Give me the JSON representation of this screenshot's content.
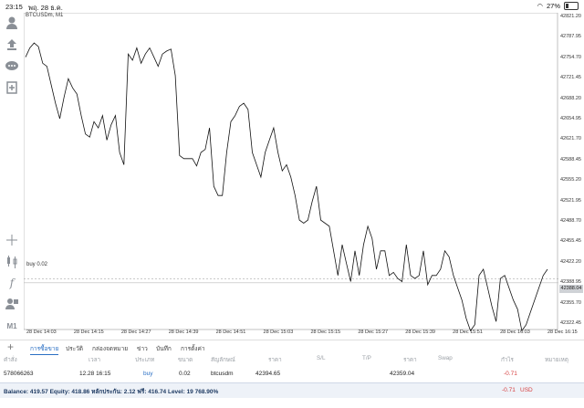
{
  "status": {
    "time": "23:15",
    "date": "พฤ. 28 ธ.ค.",
    "battery": "27%",
    "battery_level": 0.27
  },
  "chart": {
    "symbol": "BTCUSDm, M1",
    "buy_line_label": "buy 0.02",
    "current_price": "42388.04",
    "price_labels": [
      "42821.20",
      "42787.95",
      "42754.70",
      "42721.45",
      "42688.20",
      "42654.95",
      "42621.70",
      "42588.45",
      "42555.20",
      "42521.95",
      "42488.70",
      "42455.45",
      "42422.20",
      "42388.95",
      "42355.70",
      "42322.45"
    ],
    "time_labels": [
      "28 Dec 14:03",
      "28 Dec 14:15",
      "28 Dec 14:27",
      "28 Dec 14:39",
      "28 Dec 14:51",
      "28 Dec 15:03",
      "28 Dec 15:15",
      "28 Dec 15:27",
      "28 Dec 15:39",
      "28 Dec 15:51",
      "28 Dec 16:03",
      "28 Dec 16:15"
    ],
    "buy_price": 42394.65,
    "price_line": [
      42755,
      42770,
      42778,
      42772,
      42745,
      42740,
      42710,
      42680,
      42655,
      42690,
      42720,
      42705,
      42695,
      42660,
      42630,
      42625,
      42650,
      42640,
      42660,
      42620,
      42645,
      42660,
      42600,
      42580,
      42760,
      42750,
      42770,
      42745,
      42760,
      42770,
      42755,
      42740,
      42760,
      42765,
      42768,
      42725,
      42595,
      42590,
      42590,
      42590,
      42578,
      42600,
      42605,
      42640,
      42545,
      42530,
      42530,
      42600,
      42650,
      42660,
      42675,
      42680,
      42670,
      42600,
      42580,
      42560,
      42600,
      42620,
      42640,
      42600,
      42570,
      42580,
      42560,
      42530,
      42490,
      42485,
      42490,
      42520,
      42545,
      42490,
      42485,
      42480,
      42440,
      42400,
      42450,
      42420,
      42390,
      42440,
      42400,
      42450,
      42480,
      42460,
      42410,
      42440,
      42440,
      42400,
      42405,
      42395,
      42390,
      42450,
      42400,
      42395,
      42400,
      42440,
      42385,
      42400,
      42400,
      42410,
      42440,
      42430,
      42400,
      42380,
      42360,
      42330,
      42310,
      42320,
      42400,
      42410,
      42380,
      42350,
      42325,
      42395,
      42400,
      42380,
      42360,
      42345,
      42310,
      42320,
      42340,
      42360,
      42380,
      42400,
      42410
    ]
  },
  "tabs": {
    "items": [
      {
        "label": "การซื้อขาย",
        "active": true
      },
      {
        "label": "ประวัติ"
      },
      {
        "label": "กล่องจดหมาย"
      },
      {
        "label": "ข่าว"
      },
      {
        "label": "บันทึก"
      },
      {
        "label": "การตั้งค่า"
      }
    ]
  },
  "table": {
    "headers": [
      "คำสั่ง",
      "เวลา",
      "ประเภท",
      "ขนาด",
      "สัญลักษณ์",
      "ราคา",
      "S/L",
      "T/P",
      "ราคา",
      "Swap",
      "กำไร",
      "หมายเหตุ"
    ],
    "row": {
      "order": "578066263",
      "time": "12.28 16:15",
      "type": "buy",
      "size": "0.02",
      "symbol": "btcusdm",
      "price_open": "42394.65",
      "price_current": "42359.04",
      "profit": "-0.71"
    }
  },
  "balance": {
    "text": "Balance: 419.57 Equity: 418.86 หลักประกัน: 2.12 ฟรี: 416.74 Level: 19 768.90%",
    "profit": "-0.71",
    "currency": "USD"
  },
  "colors": {
    "accent": "#2a6fc4",
    "loss": "#d64040",
    "grid_dashed": "#aaaaaa"
  },
  "icons": [
    "account-icon",
    "trade-icon",
    "chat-icon",
    "new-order-icon",
    "crosshair-icon",
    "candles-icon",
    "indicator-icon",
    "objects-icon"
  ],
  "timeframe": "M1"
}
